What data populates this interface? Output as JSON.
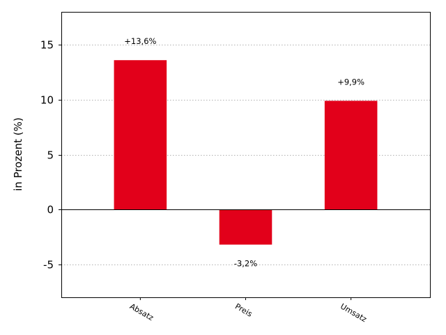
{
  "chart_data": {
    "type": "bar",
    "categories": [
      "Absatz",
      "Preis",
      "Umsatz"
    ],
    "values": [
      13.6,
      -3.2,
      9.9
    ],
    "data_labels": [
      "+13,6%",
      "-3,2%",
      "+9,9%"
    ],
    "title": "",
    "xlabel": "",
    "ylabel": "in Prozent (%)",
    "ylim": [
      -8,
      18
    ],
    "yticks": [
      -5,
      0,
      5,
      10,
      15
    ],
    "ytick_labels": [
      "-5",
      "0",
      "5",
      "10",
      "15"
    ],
    "grid": "horizontal dotted",
    "bar_color": "#e2001a",
    "zero_line_color": "#000000",
    "grid_color": "#b0b0b0"
  }
}
